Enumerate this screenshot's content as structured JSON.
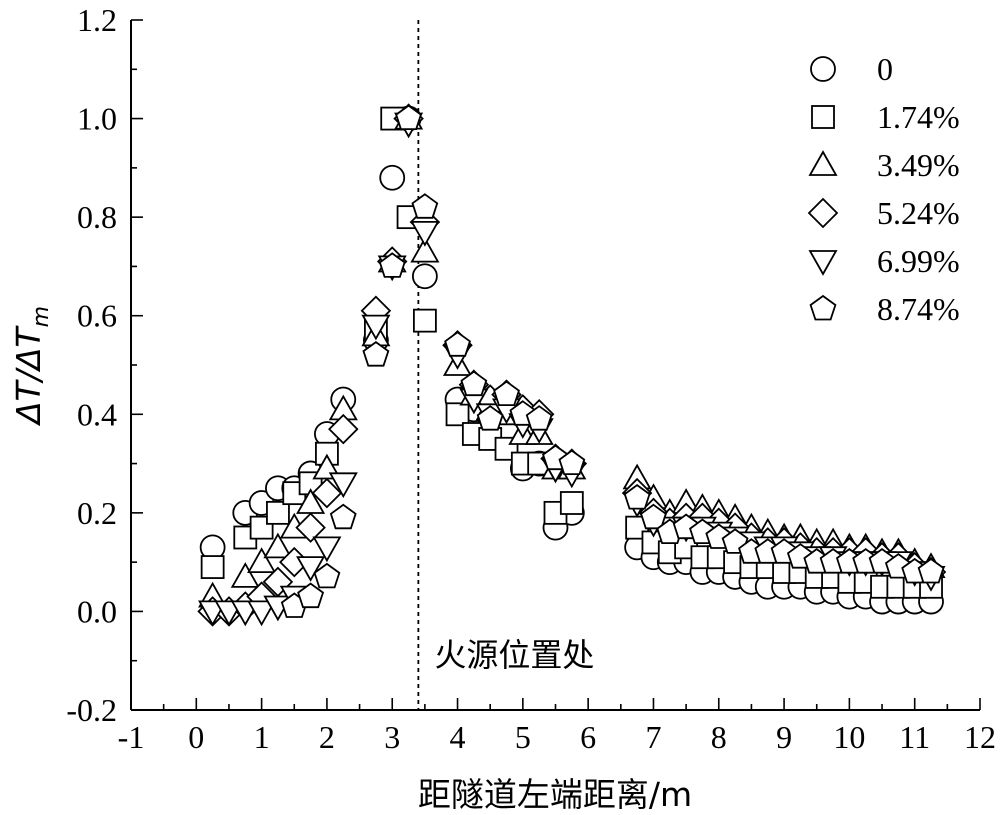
{
  "chart_data": {
    "type": "scatter",
    "title": "",
    "xlabel": "距隧道左端距离/m",
    "ylabel": "ΔT/ΔT",
    "ylabel_subscript": "m",
    "xlim": [
      -1,
      12
    ],
    "ylim": [
      -0.2,
      1.2
    ],
    "x_ticks": [
      "-1",
      "0",
      "1",
      "2",
      "3",
      "4",
      "5",
      "6",
      "7",
      "8",
      "9",
      "10",
      "11",
      "12"
    ],
    "y_ticks": [
      "-0.2",
      "0.0",
      "0.2",
      "0.4",
      "0.6",
      "0.8",
      "1.0",
      "1.2"
    ],
    "grid": false,
    "legend_position": "top-right",
    "reference_line": {
      "x": 3.4,
      "style": "dashed",
      "label": "火源位置处"
    },
    "series": [
      {
        "name": "0",
        "marker": "circle",
        "x": [
          0.25,
          0.75,
          1.0,
          1.25,
          1.5,
          1.75,
          2.0,
          2.25,
          2.75,
          3.0,
          3.25,
          3.5,
          4.0,
          4.25,
          4.5,
          4.75,
          5.0,
          5.25,
          5.5,
          5.75,
          6.75,
          7.0,
          7.25,
          7.5,
          7.75,
          8.0,
          8.25,
          8.5,
          8.75,
          9.0,
          9.25,
          9.5,
          9.75,
          10.0,
          10.25,
          10.5,
          10.75,
          11.0,
          11.25
        ],
        "y": [
          0.13,
          0.2,
          0.22,
          0.25,
          0.25,
          0.28,
          0.36,
          0.43,
          0.55,
          0.88,
          1.0,
          0.68,
          0.43,
          0.41,
          0.39,
          0.37,
          0.29,
          0.3,
          0.17,
          0.2,
          0.13,
          0.11,
          0.1,
          0.1,
          0.08,
          0.08,
          0.07,
          0.06,
          0.05,
          0.05,
          0.05,
          0.04,
          0.04,
          0.03,
          0.03,
          0.02,
          0.02,
          0.02,
          0.02
        ]
      },
      {
        "name": "1.74%",
        "marker": "square",
        "x": [
          0.25,
          0.75,
          1.0,
          1.25,
          1.5,
          1.75,
          2.0,
          2.75,
          3.0,
          3.25,
          3.5,
          4.0,
          4.25,
          4.5,
          4.75,
          5.0,
          5.25,
          5.5,
          5.75,
          6.75,
          7.0,
          7.25,
          7.5,
          7.75,
          8.0,
          8.25,
          8.5,
          8.75,
          9.0,
          9.25,
          9.5,
          9.75,
          10.0,
          10.25,
          10.5,
          10.75,
          11.0,
          11.25
        ],
        "y": [
          0.09,
          0.15,
          0.17,
          0.2,
          0.24,
          0.26,
          0.32,
          0.57,
          1.0,
          0.8,
          0.59,
          0.4,
          0.36,
          0.35,
          0.33,
          0.3,
          0.3,
          0.2,
          0.22,
          0.17,
          0.14,
          0.12,
          0.13,
          0.11,
          0.11,
          0.1,
          0.09,
          0.09,
          0.08,
          0.08,
          0.07,
          0.07,
          0.06,
          0.06,
          0.05,
          0.05,
          0.05,
          0.05
        ]
      },
      {
        "name": "3.49%",
        "marker": "triangle-up",
        "x": [
          0.25,
          0.75,
          1.0,
          1.25,
          1.5,
          1.75,
          2.0,
          2.25,
          2.75,
          3.0,
          3.25,
          3.5,
          4.0,
          4.25,
          4.5,
          4.75,
          5.0,
          5.25,
          5.5,
          5.75,
          6.75,
          7.0,
          7.25,
          7.5,
          7.75,
          8.0,
          8.25,
          8.5,
          8.75,
          9.0,
          9.25,
          9.5,
          9.75,
          10.0,
          10.25,
          10.5,
          10.75,
          11.0,
          11.25
        ],
        "y": [
          0.03,
          0.07,
          0.1,
          0.13,
          0.17,
          0.22,
          0.29,
          0.41,
          0.56,
          0.71,
          1.0,
          0.73,
          0.5,
          0.44,
          0.41,
          0.4,
          0.36,
          0.36,
          0.29,
          0.29,
          0.27,
          0.23,
          0.2,
          0.22,
          0.21,
          0.2,
          0.19,
          0.17,
          0.16,
          0.15,
          0.15,
          0.14,
          0.14,
          0.13,
          0.13,
          0.12,
          0.12,
          0.1,
          0.09
        ]
      },
      {
        "name": "5.24%",
        "marker": "diamond",
        "x": [
          0.25,
          0.5,
          0.75,
          1.0,
          1.25,
          1.5,
          1.75,
          2.0,
          2.25,
          2.75,
          3.0,
          3.25,
          3.5,
          4.0,
          4.25,
          4.5,
          4.75,
          5.0,
          5.25,
          5.5,
          5.75,
          6.75,
          7.0,
          7.25,
          7.5,
          7.75,
          8.0,
          8.25,
          8.5,
          8.75,
          9.0,
          9.25,
          9.5,
          9.75,
          10.0,
          10.25,
          10.5,
          10.75,
          11.0,
          11.25
        ],
        "y": [
          0.0,
          0.0,
          0.01,
          0.03,
          0.06,
          0.1,
          0.17,
          0.24,
          0.37,
          0.61,
          0.71,
          1.0,
          0.79,
          0.54,
          0.46,
          0.43,
          0.44,
          0.41,
          0.4,
          0.31,
          0.3,
          0.24,
          0.2,
          0.18,
          0.19,
          0.19,
          0.18,
          0.17,
          0.15,
          0.14,
          0.14,
          0.13,
          0.12,
          0.12,
          0.12,
          0.12,
          0.11,
          0.11,
          0.09,
          0.08
        ]
      },
      {
        "name": "6.99%",
        "marker": "triangle-down",
        "x": [
          0.25,
          0.5,
          0.75,
          1.0,
          1.25,
          1.5,
          1.75,
          2.0,
          2.25,
          2.75,
          3.0,
          3.25,
          3.5,
          4.0,
          4.25,
          4.5,
          4.75,
          5.0,
          5.25,
          5.5,
          5.75,
          6.75,
          7.0,
          7.25,
          7.5,
          7.75,
          8.0,
          8.25,
          8.5,
          8.75,
          9.0,
          9.25,
          9.5,
          9.75,
          10.0,
          10.25,
          10.5,
          10.75,
          11.0,
          11.25
        ],
        "y": [
          0.0,
          0.0,
          0.0,
          0.0,
          0.01,
          0.03,
          0.09,
          0.13,
          0.26,
          0.58,
          0.7,
          0.99,
          0.77,
          0.52,
          0.43,
          0.4,
          0.41,
          0.38,
          0.37,
          0.29,
          0.28,
          0.22,
          0.18,
          0.17,
          0.17,
          0.17,
          0.16,
          0.15,
          0.14,
          0.13,
          0.13,
          0.12,
          0.11,
          0.11,
          0.1,
          0.1,
          0.1,
          0.1,
          0.08,
          0.07
        ]
      },
      {
        "name": "8.74%",
        "marker": "pentagon",
        "x": [
          1.5,
          1.75,
          2.0,
          2.25,
          2.75,
          3.0,
          3.25,
          3.5,
          4.0,
          4.25,
          4.5,
          4.75,
          5.0,
          5.25,
          5.5,
          5.75,
          6.75,
          7.0,
          7.25,
          7.5,
          7.75,
          8.0,
          8.25,
          8.5,
          8.75,
          9.0,
          9.25,
          9.5,
          9.75,
          10.0,
          10.25,
          10.5,
          10.75,
          11.0,
          11.25
        ],
        "y": [
          0.01,
          0.03,
          0.07,
          0.19,
          0.52,
          0.7,
          1.0,
          0.82,
          0.54,
          0.46,
          0.39,
          0.44,
          0.4,
          0.39,
          0.31,
          0.3,
          0.23,
          0.19,
          0.16,
          0.17,
          0.16,
          0.15,
          0.14,
          0.12,
          0.12,
          0.12,
          0.11,
          0.1,
          0.1,
          0.1,
          0.1,
          0.1,
          0.09,
          0.08,
          0.08
        ]
      }
    ]
  }
}
